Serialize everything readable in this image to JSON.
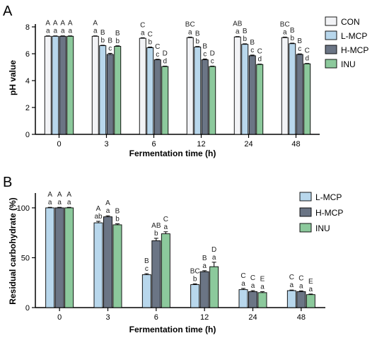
{
  "chart_data": [
    {
      "panel": "A",
      "type": "bar",
      "title": "",
      "xlabel": "Fermentation time (h)",
      "ylabel": "pH value",
      "categories": [
        "0",
        "3",
        "6",
        "12",
        "24",
        "48"
      ],
      "ylim": [
        0,
        8
      ],
      "yticks": [
        "0",
        "2",
        "4",
        "6",
        "8"
      ],
      "legend_position": "right",
      "series": [
        {
          "name": "CON",
          "color": "#f2f3f6",
          "values": [
            7.3,
            7.3,
            7.15,
            7.2,
            7.25,
            7.2
          ],
          "errors": [
            0.03,
            0.03,
            0.04,
            0.04,
            0.03,
            0.04
          ],
          "upper_letters": [
            "A",
            "A",
            "C",
            "BC",
            "AB",
            "BC"
          ],
          "lower_letters": [
            "a",
            "a",
            "a",
            "a",
            "a",
            "a"
          ]
        },
        {
          "name": "L-MCP",
          "color": "#b8d7ec",
          "values": [
            7.3,
            6.6,
            6.45,
            6.5,
            6.7,
            6.75
          ],
          "errors": [
            0.03,
            0.03,
            0.05,
            0.04,
            0.04,
            0.04
          ],
          "upper_letters": [
            "A",
            "B",
            "C",
            "B",
            "B",
            "B"
          ],
          "lower_letters": [
            "a",
            "b",
            "b",
            "b",
            "b",
            "b"
          ]
        },
        {
          "name": "H-MCP",
          "color": "#6b7585",
          "values": [
            7.3,
            5.95,
            5.55,
            5.55,
            5.85,
            5.95
          ],
          "errors": [
            0.03,
            0.08,
            0.04,
            0.06,
            0.05,
            0.04
          ],
          "upper_letters": [
            "A",
            "B",
            "C",
            "B",
            "B",
            "B"
          ],
          "lower_letters": [
            "a",
            "c",
            "c",
            "c",
            "c",
            "c"
          ]
        },
        {
          "name": "INU",
          "color": "#8cc99c",
          "values": [
            7.3,
            6.55,
            5.05,
            5.05,
            5.2,
            5.25
          ],
          "errors": [
            0.03,
            0.04,
            0.03,
            0.03,
            0.03,
            0.03
          ],
          "upper_letters": [
            "A",
            "B",
            "D",
            "D",
            "C",
            "C"
          ],
          "lower_letters": [
            "a",
            "b",
            "d",
            "c",
            "d",
            "d"
          ]
        }
      ]
    },
    {
      "panel": "B",
      "type": "bar",
      "title": "",
      "xlabel": "Fermentation time (h)",
      "ylabel": "Residual carbohydrate (%)",
      "categories": [
        "0",
        "3",
        "6",
        "12",
        "24",
        "48"
      ],
      "ylim": [
        0,
        112
      ],
      "yticks": [
        "0",
        "50",
        "100"
      ],
      "legend_position": "right",
      "series": [
        {
          "name": "L-MCP",
          "color": "#b8d7ec",
          "values": [
            100,
            85,
            33,
            23,
            18,
            17
          ],
          "errors": [
            0.5,
            1.5,
            1.0,
            0.8,
            1.2,
            0.6
          ],
          "upper_letters": [
            "A",
            "A",
            "B",
            "BC",
            "C",
            "C"
          ],
          "lower_letters": [
            "a",
            "ab",
            "c",
            "b",
            "a",
            "a"
          ]
        },
        {
          "name": "H-MCP",
          "color": "#6b7585",
          "values": [
            100,
            91,
            67,
            36,
            16,
            16
          ],
          "errors": [
            0.5,
            1.0,
            2.5,
            1.0,
            1.0,
            0.8
          ],
          "upper_letters": [
            "A",
            "A",
            "AB",
            "B",
            "C",
            "C"
          ],
          "lower_letters": [
            "a",
            "a",
            "b",
            "a",
            "a",
            "a"
          ]
        },
        {
          "name": "INU",
          "color": "#8cc99c",
          "values": [
            100,
            83,
            74,
            41,
            15,
            13
          ],
          "errors": [
            0.5,
            1.0,
            2.0,
            4.5,
            1.0,
            0.6
          ],
          "upper_letters": [
            "A",
            "B",
            "C",
            "D",
            "E",
            "E"
          ],
          "lower_letters": [
            "a",
            "b",
            "a",
            "a",
            "a",
            "a"
          ]
        }
      ]
    }
  ]
}
